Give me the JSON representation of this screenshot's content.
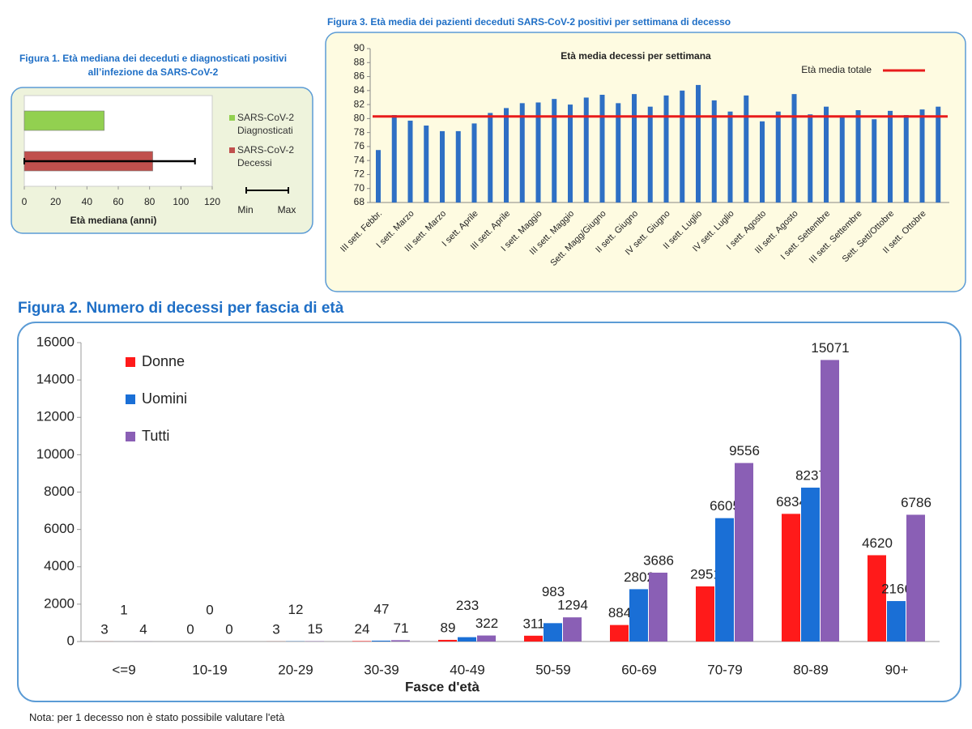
{
  "chart_data": [
    {
      "type": "hbar",
      "title": "Figura 1. Età mediana dei deceduti e diagnosticati positivi all’infezione da SARS-CoV-2",
      "categories": [
        "SARS-CoV-2 Diagnosticati",
        "SARS-CoV-2 Decessi"
      ],
      "values": [
        51,
        82
      ],
      "colors": [
        "#92d050",
        "#c0504d"
      ],
      "range_min": [
        null,
        0
      ],
      "range_max": [
        null,
        109
      ],
      "range_legend": [
        "Min",
        "Max"
      ],
      "xlabel": "Età mediana (anni)",
      "xlim": [
        0,
        120
      ],
      "xticks": [
        0,
        20,
        40,
        60,
        80,
        100,
        120
      ]
    },
    {
      "type": "bar",
      "title": "Figura 3. Età media dei pazienti deceduti SARS-CoV-2 positivi per settimana di decesso",
      "subtitle": "Età media decessi per settimana",
      "categories": [
        "III sett. Febbr.",
        null,
        "I sett. Marzo",
        null,
        "III sett. Marzo",
        null,
        "I sett. Aprile",
        null,
        "III sett. Aprile",
        null,
        "I sett. Maggio",
        null,
        "III sett. Maggio",
        null,
        "Sett. Magg/Giugno",
        null,
        "II sett. Giugno",
        null,
        "IV sett. Giugno",
        null,
        "II sett. Luglio",
        null,
        "IV sett. Luglio",
        null,
        "I sett. Agosto",
        null,
        "III sett. Agosto",
        null,
        "I sett. Settembre",
        null,
        "III sett. Settembre",
        null,
        "Sett. Sett/Ottobre",
        null,
        "II sett. Ottobre",
        null
      ],
      "values": [
        75.5,
        80.5,
        79.7,
        79.0,
        78.2,
        78.2,
        79.3,
        80.8,
        81.5,
        82.2,
        82.3,
        82.8,
        82.0,
        83.0,
        83.4,
        82.2,
        83.5,
        81.7,
        83.3,
        84.0,
        84.8,
        82.6,
        81.0,
        83.3,
        79.6,
        81.0,
        83.5,
        80.6,
        81.7,
        80.2,
        81.2,
        79.9,
        81.1,
        80.5,
        81.3,
        81.7
      ],
      "color": "#2e6fc4",
      "reference_line": {
        "name": "Età media totale",
        "value": 80.3,
        "color": "#e81c1c"
      },
      "ylim": [
        68,
        90
      ],
      "yticks": [
        68,
        70,
        72,
        74,
        76,
        78,
        80,
        82,
        84,
        86,
        88,
        90
      ],
      "grid": false
    },
    {
      "type": "grouped_bar",
      "title": "Figura 2. Numero di decessi per fascia di età",
      "categories": [
        "<=9",
        "10-19",
        "20-29",
        "30-39",
        "40-49",
        "50-59",
        "60-69",
        "70-79",
        "80-89",
        "90+"
      ],
      "series": [
        {
          "name": "Donne",
          "color": "#ff1a1a",
          "values": [
            3,
            0,
            3,
            24,
            89,
            311,
            884,
            2951,
            6834,
            4620
          ]
        },
        {
          "name": "Uomini",
          "color": "#1a6fd6",
          "values": [
            1,
            0,
            12,
            47,
            233,
            983,
            2802,
            6605,
            8237,
            2166
          ]
        },
        {
          "name": "Tutti",
          "color": "#8a5fb5",
          "values": [
            4,
            0,
            15,
            71,
            322,
            1294,
            3686,
            9556,
            15071,
            6786
          ]
        }
      ],
      "xlabel": "Fasce d'età",
      "ylim": [
        0,
        16000
      ],
      "yticks": [
        0,
        2000,
        4000,
        6000,
        8000,
        10000,
        12000,
        14000,
        16000
      ],
      "grid": false,
      "legend": "top-left"
    }
  ],
  "note": "Nota: per 1 decesso non è stato possibile valutare l'età"
}
